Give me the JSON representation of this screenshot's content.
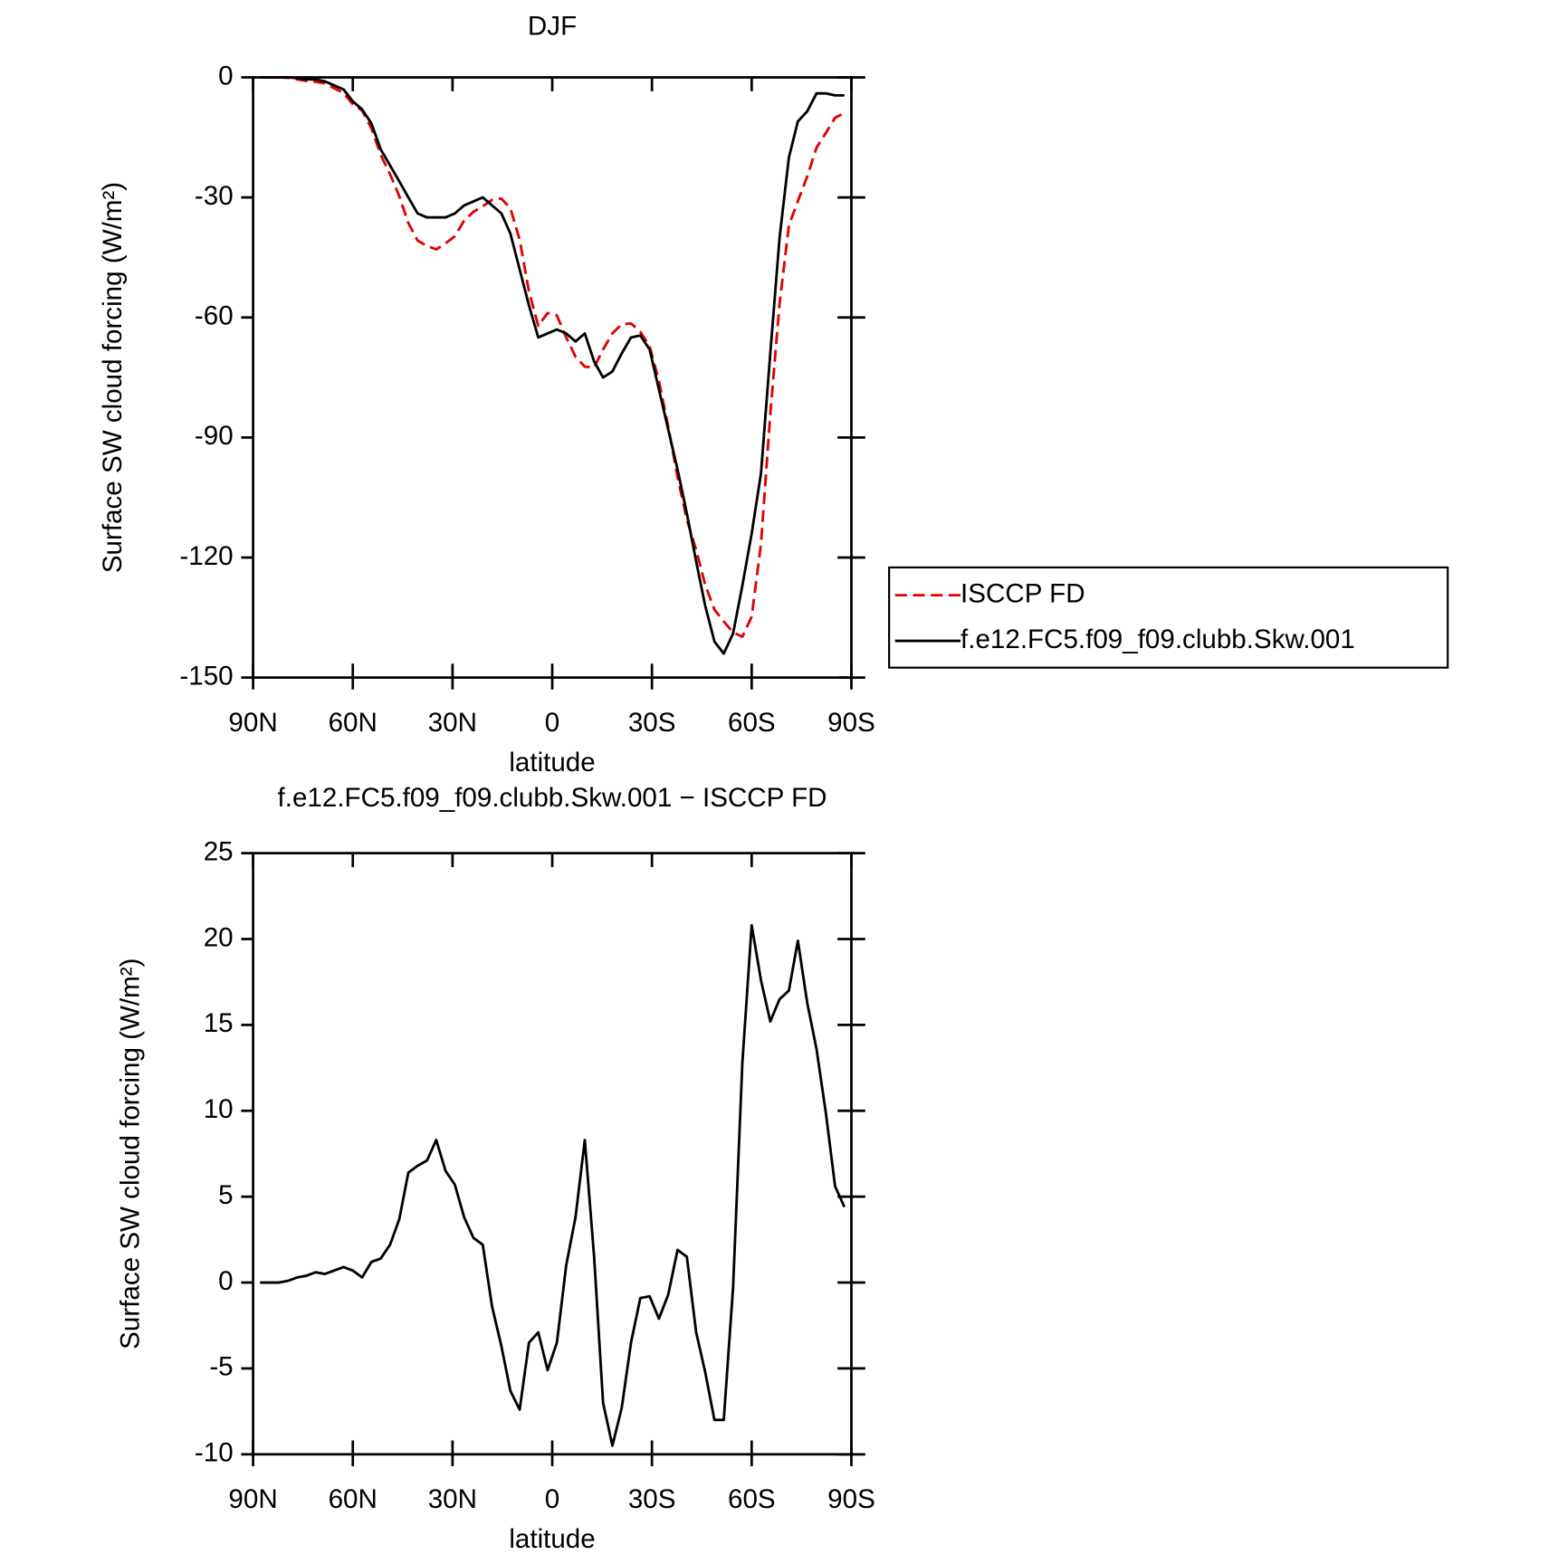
{
  "chart_data": [
    {
      "type": "line",
      "title": "DJF",
      "x_label": "latitude",
      "y_label": "Surface SW cloud forcing (W/m²)",
      "x": [
        87.9,
        85.1,
        82.3,
        79.5,
        76.7,
        73.9,
        71.2,
        68.4,
        65.6,
        62.8,
        60.0,
        57.2,
        54.4,
        51.6,
        48.8,
        46.0,
        43.3,
        40.5,
        37.7,
        34.9,
        32.1,
        29.3,
        26.5,
        23.7,
        20.9,
        18.1,
        15.3,
        12.6,
        9.8,
        7.0,
        4.2,
        1.4,
        -1.4,
        -4.2,
        -7.0,
        -9.8,
        -12.6,
        -15.3,
        -18.1,
        -20.9,
        -23.7,
        -26.5,
        -29.3,
        -32.1,
        -34.9,
        -37.7,
        -40.5,
        -43.3,
        -46.0,
        -48.8,
        -51.6,
        -54.4,
        -57.2,
        -60.0,
        -62.8,
        -65.6,
        -68.4,
        -71.2,
        -73.9,
        -76.7,
        -79.5,
        -82.3,
        -85.1,
        -87.9
      ],
      "series": [
        {
          "name": "ISCCP FD",
          "color": "#e00000",
          "dash": true,
          "values": [
            0,
            0,
            0,
            -0.1,
            -0.5,
            -0.9,
            -1.1,
            -1.5,
            -2.7,
            -3.9,
            -6.7,
            -8.3,
            -12.7,
            -19.4,
            -24.2,
            -29.7,
            -36.4,
            -40.8,
            -42.1,
            -43,
            -41.5,
            -39.7,
            -35.8,
            -33.6,
            -32.2,
            -30.6,
            -30.3,
            -32.7,
            -40.6,
            -53.5,
            -62.1,
            -58.9,
            -59.5,
            -65,
            -69.8,
            -72.3,
            -72.5,
            -68,
            -64,
            -61.7,
            -61.5,
            -63.6,
            -67.2,
            -75.9,
            -87.3,
            -99.9,
            -110.5,
            -118.1,
            -126.8,
            -133,
            -136,
            -138.7,
            -139.8,
            -134.8,
            -116.6,
            -84.2,
            -56.5,
            -37,
            -30.9,
            -24.8,
            -17.6,
            -13.9,
            -10.1,
            -8.9
          ]
        },
        {
          "name": "f.e12.FC5.f09_f09.clubb.Skw.001",
          "color": "#000000",
          "dash": false,
          "values": [
            0,
            0,
            0,
            0,
            -0.2,
            -0.5,
            -0.5,
            -1,
            -2,
            -3,
            -6,
            -8,
            -11.5,
            -18,
            -22,
            -26,
            -30,
            -34,
            -35,
            -35,
            -35,
            -34,
            -32,
            -31,
            -30,
            -32,
            -34,
            -39,
            -48,
            -57,
            -65,
            -64,
            -63,
            -64,
            -66,
            -64,
            -71,
            -75,
            -73.5,
            -69,
            -65,
            -64.5,
            -68,
            -78,
            -88,
            -98,
            -109,
            -121,
            -132,
            -141,
            -144,
            -139,
            -127,
            -114,
            -99,
            -69,
            -40,
            -20,
            -11,
            -8.5,
            -4,
            -4,
            -4.5,
            -4.5
          ]
        }
      ],
      "xlim": [
        90,
        -90
      ],
      "xticks": [
        {
          "value": 90,
          "label": "90N"
        },
        {
          "value": 60,
          "label": "60N"
        },
        {
          "value": 30,
          "label": "30N"
        },
        0,
        {
          "value": -30,
          "label": "30S"
        },
        {
          "value": -60,
          "label": "60S"
        },
        {
          "value": -90,
          "label": "90S"
        }
      ],
      "ylim": [
        -150,
        0
      ],
      "yticks": [
        0,
        -30,
        -60,
        -90,
        -120,
        -150
      ],
      "legend": "right"
    },
    {
      "type": "line",
      "title": "f.e12.FC5.f09_f09.clubb.Skw.001 − ISCCP FD",
      "x_label": "latitude",
      "y_label": "Surface SW cloud forcing (W/m²)",
      "x": [
        87.9,
        85.1,
        82.3,
        79.5,
        76.7,
        73.9,
        71.2,
        68.4,
        65.6,
        62.8,
        60.0,
        57.2,
        54.4,
        51.6,
        48.8,
        46.0,
        43.3,
        40.5,
        37.7,
        34.9,
        32.1,
        29.3,
        26.5,
        23.7,
        20.9,
        18.1,
        15.3,
        12.6,
        9.8,
        7.0,
        4.2,
        1.4,
        -1.4,
        -4.2,
        -7.0,
        -9.8,
        -12.6,
        -15.3,
        -18.1,
        -20.9,
        -23.7,
        -26.5,
        -29.3,
        -32.1,
        -34.9,
        -37.7,
        -40.5,
        -43.3,
        -46.0,
        -48.8,
        -51.6,
        -54.4,
        -57.2,
        -60.0,
        -62.8,
        -65.6,
        -68.4,
        -71.2,
        -73.9,
        -76.7,
        -79.5,
        -82.3,
        -85.1,
        -87.9
      ],
      "values": [
        0,
        0,
        0,
        0.1,
        0.3,
        0.4,
        0.6,
        0.5,
        0.7,
        0.9,
        0.7,
        0.3,
        1.2,
        1.4,
        2.2,
        3.7,
        6.4,
        6.8,
        7.1,
        8.3,
        6.5,
        5.7,
        3.8,
        2.6,
        2.2,
        -1.4,
        -3.7,
        -6.3,
        -7.4,
        -3.5,
        -2.9,
        -5.1,
        -3.5,
        1.0,
        3.8,
        8.3,
        1.5,
        -7.0,
        -9.5,
        -7.3,
        -3.5,
        -0.9,
        -0.8,
        -2.1,
        -0.7,
        1.9,
        1.5,
        -2.9,
        -5.2,
        -8.0,
        -8.0,
        -0.3,
        12.8,
        20.8,
        17.6,
        15.2,
        16.5,
        17.0,
        19.9,
        16.3,
        13.6,
        9.9,
        5.6,
        4.4
      ],
      "color": "#000000",
      "xlim": [
        90,
        -90
      ],
      "xticks": [
        {
          "value": 90,
          "label": "90N"
        },
        {
          "value": 60,
          "label": "60N"
        },
        {
          "value": 30,
          "label": "30N"
        },
        0,
        {
          "value": -30,
          "label": "30S"
        },
        {
          "value": -60,
          "label": "60S"
        },
        {
          "value": -90,
          "label": "90S"
        }
      ],
      "ylim": [
        -10,
        25
      ],
      "yticks": [
        -10,
        -5,
        0,
        5,
        10,
        15,
        20,
        25
      ]
    }
  ]
}
